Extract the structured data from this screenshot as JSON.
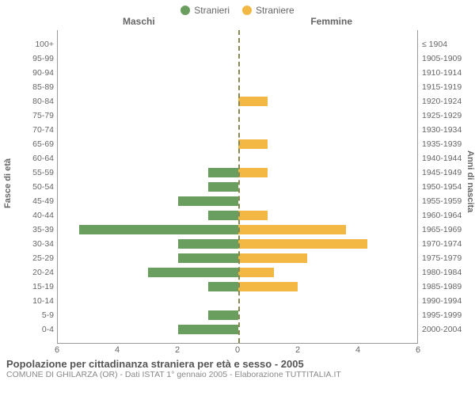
{
  "chart": {
    "type": "population-pyramid",
    "legend": [
      {
        "label": "Stranieri",
        "color": "#6a9e5e"
      },
      {
        "label": "Straniere",
        "color": "#f2b843"
      }
    ],
    "left_header": "Maschi",
    "right_header": "Femmine",
    "y_axis_left_title": "Fasce di età",
    "y_axis_right_title": "Anni di nascita",
    "x_max": 6,
    "x_ticks_left": [
      6,
      4,
      2,
      0
    ],
    "x_ticks_right": [
      0,
      2,
      4,
      6
    ],
    "bar_color_left": "#6a9e5e",
    "bar_color_right": "#f2b843",
    "background_color": "#ffffff",
    "axis_color": "#999999",
    "center_line_color": "#888855",
    "label_color": "#666666",
    "label_fontsize": 10.5,
    "rows": [
      {
        "age": "100+",
        "birth": "≤ 1904",
        "m": 0,
        "f": 0
      },
      {
        "age": "95-99",
        "birth": "1905-1909",
        "m": 0,
        "f": 0
      },
      {
        "age": "90-94",
        "birth": "1910-1914",
        "m": 0,
        "f": 0
      },
      {
        "age": "85-89",
        "birth": "1915-1919",
        "m": 0,
        "f": 0
      },
      {
        "age": "80-84",
        "birth": "1920-1924",
        "m": 0,
        "f": 1
      },
      {
        "age": "75-79",
        "birth": "1925-1929",
        "m": 0,
        "f": 0
      },
      {
        "age": "70-74",
        "birth": "1930-1934",
        "m": 0,
        "f": 0
      },
      {
        "age": "65-69",
        "birth": "1935-1939",
        "m": 0,
        "f": 1
      },
      {
        "age": "60-64",
        "birth": "1940-1944",
        "m": 0,
        "f": 0
      },
      {
        "age": "55-59",
        "birth": "1945-1949",
        "m": 1,
        "f": 1
      },
      {
        "age": "50-54",
        "birth": "1950-1954",
        "m": 1,
        "f": 0
      },
      {
        "age": "45-49",
        "birth": "1955-1959",
        "m": 2,
        "f": 0
      },
      {
        "age": "40-44",
        "birth": "1960-1964",
        "m": 1,
        "f": 1
      },
      {
        "age": "35-39",
        "birth": "1965-1969",
        "m": 5.3,
        "f": 3.6
      },
      {
        "age": "30-34",
        "birth": "1970-1974",
        "m": 2,
        "f": 4.3
      },
      {
        "age": "25-29",
        "birth": "1975-1979",
        "m": 2,
        "f": 2.3
      },
      {
        "age": "20-24",
        "birth": "1980-1984",
        "m": 3,
        "f": 1.2
      },
      {
        "age": "15-19",
        "birth": "1985-1989",
        "m": 1,
        "f": 2
      },
      {
        "age": "10-14",
        "birth": "1990-1994",
        "m": 0,
        "f": 0
      },
      {
        "age": "5-9",
        "birth": "1995-1999",
        "m": 1,
        "f": 0
      },
      {
        "age": "0-4",
        "birth": "2000-2004",
        "m": 2,
        "f": 0
      }
    ]
  },
  "footer": {
    "title": "Popolazione per cittadinanza straniera per età e sesso - 2005",
    "subtitle": "COMUNE DI GHILARZA (OR) - Dati ISTAT 1° gennaio 2005 - Elaborazione TUTTITALIA.IT"
  }
}
